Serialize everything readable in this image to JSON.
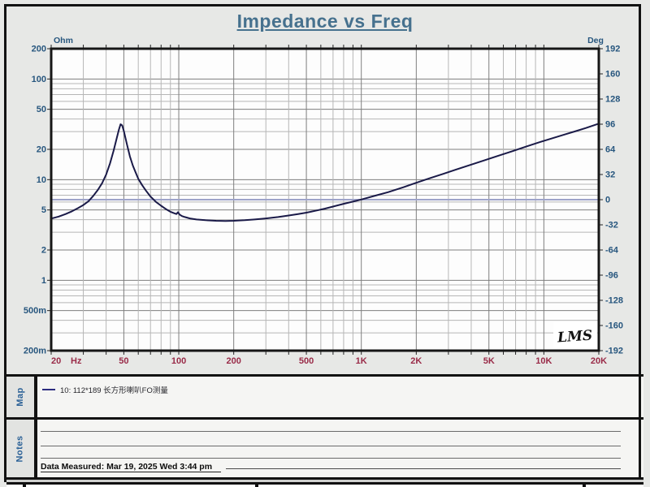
{
  "title": "Impedance vs Freq",
  "chart_data": {
    "type": "line",
    "title": "Impedance vs Freq",
    "grid": "log-log",
    "x_axis": {
      "unit": "Hz",
      "scale": "log",
      "min": 20,
      "max": 20000,
      "tick_labels": [
        "20",
        "50",
        "100",
        "200",
        "500",
        "1K",
        "2K",
        "5K",
        "10K",
        "20K"
      ],
      "tick_values": [
        20,
        50,
        100,
        200,
        500,
        1000,
        2000,
        5000,
        10000,
        20000
      ]
    },
    "y_axis_left": {
      "unit": "Ohm",
      "scale": "log",
      "min": 0.2,
      "max": 200,
      "tick_labels": [
        "200",
        "100",
        "50",
        "20",
        "10",
        "5",
        "2",
        "1",
        "500m",
        "200m"
      ],
      "tick_values": [
        200,
        100,
        50,
        20,
        10,
        5,
        2,
        1,
        0.5,
        0.2
      ]
    },
    "y_axis_right": {
      "unit": "Deg",
      "scale": "linear",
      "min": -192,
      "max": 192,
      "tick_labels": [
        "192",
        "160",
        "128",
        "96",
        "64",
        "32",
        "0",
        "-32",
        "-64",
        "-96",
        "-128",
        "-160",
        "-192"
      ],
      "tick_values": [
        192,
        160,
        128,
        96,
        64,
        32,
        0,
        -32,
        -64,
        -96,
        -128,
        -160,
        -192
      ]
    },
    "reference_line": {
      "axis": "right",
      "value": 0,
      "color": "#9ea3c9"
    },
    "series": [
      {
        "name": "10: 112*189 长方形喇叭FO测量",
        "axis": "left",
        "color": "#1a1a48",
        "points": [
          [
            20,
            4.1
          ],
          [
            22,
            4.3
          ],
          [
            24,
            4.55
          ],
          [
            26,
            4.85
          ],
          [
            28,
            5.2
          ],
          [
            30,
            5.6
          ],
          [
            32,
            6.1
          ],
          [
            34,
            6.9
          ],
          [
            36,
            7.9
          ],
          [
            38,
            9.2
          ],
          [
            40,
            11.2
          ],
          [
            42,
            14.5
          ],
          [
            44,
            19.5
          ],
          [
            46,
            27
          ],
          [
            47,
            31.5
          ],
          [
            48,
            35.5
          ],
          [
            49,
            34.5
          ],
          [
            50,
            30.5
          ],
          [
            52,
            22.5
          ],
          [
            54,
            17
          ],
          [
            56,
            13.8
          ],
          [
            58,
            11.8
          ],
          [
            60,
            10.2
          ],
          [
            63,
            8.8
          ],
          [
            66,
            7.8
          ],
          [
            70,
            6.8
          ],
          [
            75,
            6.0
          ],
          [
            80,
            5.5
          ],
          [
            85,
            5.1
          ],
          [
            90,
            4.8
          ],
          [
            94,
            4.65
          ],
          [
            97,
            4.55
          ],
          [
            99,
            4.75
          ],
          [
            101,
            4.5
          ],
          [
            104,
            4.35
          ],
          [
            108,
            4.25
          ],
          [
            115,
            4.12
          ],
          [
            125,
            4.02
          ],
          [
            140,
            3.95
          ],
          [
            160,
            3.9
          ],
          [
            180,
            3.88
          ],
          [
            200,
            3.9
          ],
          [
            230,
            3.95
          ],
          [
            260,
            4.02
          ],
          [
            300,
            4.12
          ],
          [
            350,
            4.25
          ],
          [
            400,
            4.4
          ],
          [
            450,
            4.55
          ],
          [
            500,
            4.7
          ],
          [
            560,
            4.9
          ],
          [
            630,
            5.15
          ],
          [
            700,
            5.4
          ],
          [
            800,
            5.75
          ],
          [
            900,
            6.05
          ],
          [
            1000,
            6.35
          ],
          [
            1200,
            6.95
          ],
          [
            1400,
            7.5
          ],
          [
            1700,
            8.4
          ],
          [
            2000,
            9.3
          ],
          [
            2400,
            10.4
          ],
          [
            2800,
            11.4
          ],
          [
            3300,
            12.6
          ],
          [
            4000,
            14.1
          ],
          [
            4700,
            15.5
          ],
          [
            5600,
            17.2
          ],
          [
            6800,
            19.3
          ],
          [
            8000,
            21.3
          ],
          [
            9500,
            23.6
          ],
          [
            11000,
            25.6
          ],
          [
            13000,
            28.1
          ],
          [
            15000,
            30.4
          ],
          [
            17000,
            32.6
          ],
          [
            20000,
            36
          ]
        ],
        "resonance_peak": {
          "freq_hz": 48,
          "impedance_ohm": 35.5
        }
      }
    ],
    "annotations": [
      {
        "text": "LMS",
        "position": "bottom-right"
      }
    ]
  },
  "map_section": {
    "label": "Map",
    "legend_entries": [
      {
        "label": "10: 112*189 长方形喇叭FO测量",
        "color": "#2d2d7f"
      }
    ]
  },
  "notes_section": {
    "label": "Notes",
    "data_measured": "Data Measured: Mar 19, 2025  Wed  3:44 pm"
  },
  "colors": {
    "title": "#46718e",
    "axis_label_blue": "#27567e",
    "freq_label_red": "#992b48",
    "curve": "#1a1a48",
    "grid_minor": "#b6b6b6",
    "grid_major": "#7e7e7e",
    "frame": "#161616",
    "background": "#e7e8e6",
    "plot_background": "#fdfdfd"
  }
}
